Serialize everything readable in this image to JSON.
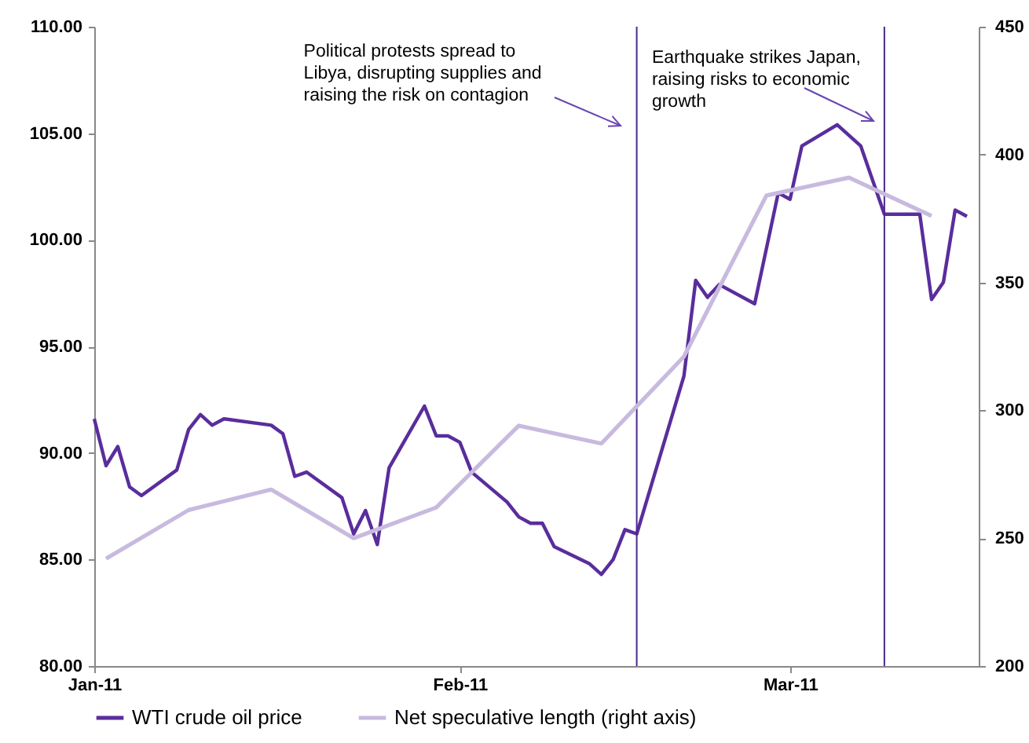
{
  "chart_data": {
    "type": "line",
    "series": [
      {
        "name": "WTI crude oil price",
        "color": "#5a2d9c",
        "x": [
          "2011-01-01",
          "2011-01-02",
          "2011-01-03",
          "2011-01-04",
          "2011-01-05",
          "2011-01-08",
          "2011-01-09",
          "2011-01-10",
          "2011-01-11",
          "2011-01-12",
          "2011-01-16",
          "2011-01-17",
          "2011-01-18",
          "2011-01-19",
          "2011-01-22",
          "2011-01-23",
          "2011-01-24",
          "2011-01-25",
          "2011-01-26",
          "2011-01-29",
          "2011-01-30",
          "2011-01-31",
          "2011-02-01",
          "2011-02-02",
          "2011-02-05",
          "2011-02-06",
          "2011-02-07",
          "2011-02-08",
          "2011-02-09",
          "2011-02-12",
          "2011-02-13",
          "2011-02-14",
          "2011-02-15",
          "2011-02-16",
          "2011-02-20",
          "2011-02-21",
          "2011-02-22",
          "2011-02-23",
          "2011-02-26",
          "2011-02-28",
          "2011-03-01",
          "2011-03-02",
          "2011-03-05",
          "2011-03-07",
          "2011-03-09",
          "2011-03-12",
          "2011-03-13",
          "2011-03-14",
          "2011-03-15",
          "2011-03-16"
        ],
        "values": [
          91.6,
          89.4,
          90.3,
          88.4,
          88.0,
          89.2,
          91.1,
          91.8,
          91.3,
          91.6,
          91.3,
          90.9,
          88.9,
          89.1,
          87.9,
          86.2,
          87.3,
          85.7,
          89.3,
          92.2,
          90.8,
          90.8,
          90.5,
          89.1,
          87.7,
          87.0,
          86.7,
          86.7,
          85.6,
          84.8,
          84.3,
          85.0,
          86.4,
          86.2,
          93.6,
          98.1,
          97.3,
          97.9,
          97.0,
          102.2,
          101.9,
          104.4,
          105.4,
          104.4,
          101.2,
          101.2,
          97.2,
          98.0,
          101.4,
          101.1
        ]
      },
      {
        "name": "Net speculative length (right axis)",
        "color": "#c8badf",
        "axis": "y2",
        "x": [
          "2011-01-02",
          "2011-01-09",
          "2011-01-16",
          "2011-01-23",
          "2011-01-30",
          "2011-02-06",
          "2011-02-13",
          "2011-02-20",
          "2011-02-27",
          "2011-03-06",
          "2011-03-13"
        ],
        "values": [
          242,
          261,
          269,
          250,
          262,
          294,
          287,
          321,
          384,
          391,
          376
        ]
      }
    ],
    "xlim": [
      "2011-01-01",
      "2011-03-17"
    ],
    "xticks": [
      {
        "value": "2011-01-01",
        "label": "Jan-11"
      },
      {
        "value": "2011-02-01",
        "label": "Feb-11"
      },
      {
        "value": "2011-03-01",
        "label": "Mar-11"
      }
    ],
    "ylim": [
      80,
      110
    ],
    "yticks": [
      {
        "value": 80,
        "label": "80.00"
      },
      {
        "value": 85,
        "label": "85.00"
      },
      {
        "value": 90,
        "label": "90.00"
      },
      {
        "value": 95,
        "label": "95.00"
      },
      {
        "value": 100,
        "label": "100.00"
      },
      {
        "value": 105,
        "label": "105.00"
      },
      {
        "value": 110,
        "label": "110.00"
      }
    ],
    "y2lim": [
      200,
      450
    ],
    "y2ticks": [
      200,
      250,
      300,
      350,
      400,
      450
    ],
    "ref_lines": [
      {
        "axis": "x",
        "value": "2011-02-16",
        "color": "#4b2a8a"
      },
      {
        "axis": "x",
        "value": "2011-03-09",
        "color": "#4b2a8a"
      }
    ],
    "annotations": [
      "Political protests spread to Libya, disrupting supplies and raising the risk on contagion",
      "Earthquake strikes Japan, raising risks to economic growth"
    ],
    "legend": "bottom",
    "grid": false,
    "line_style": "solid",
    "marker": "none"
  }
}
